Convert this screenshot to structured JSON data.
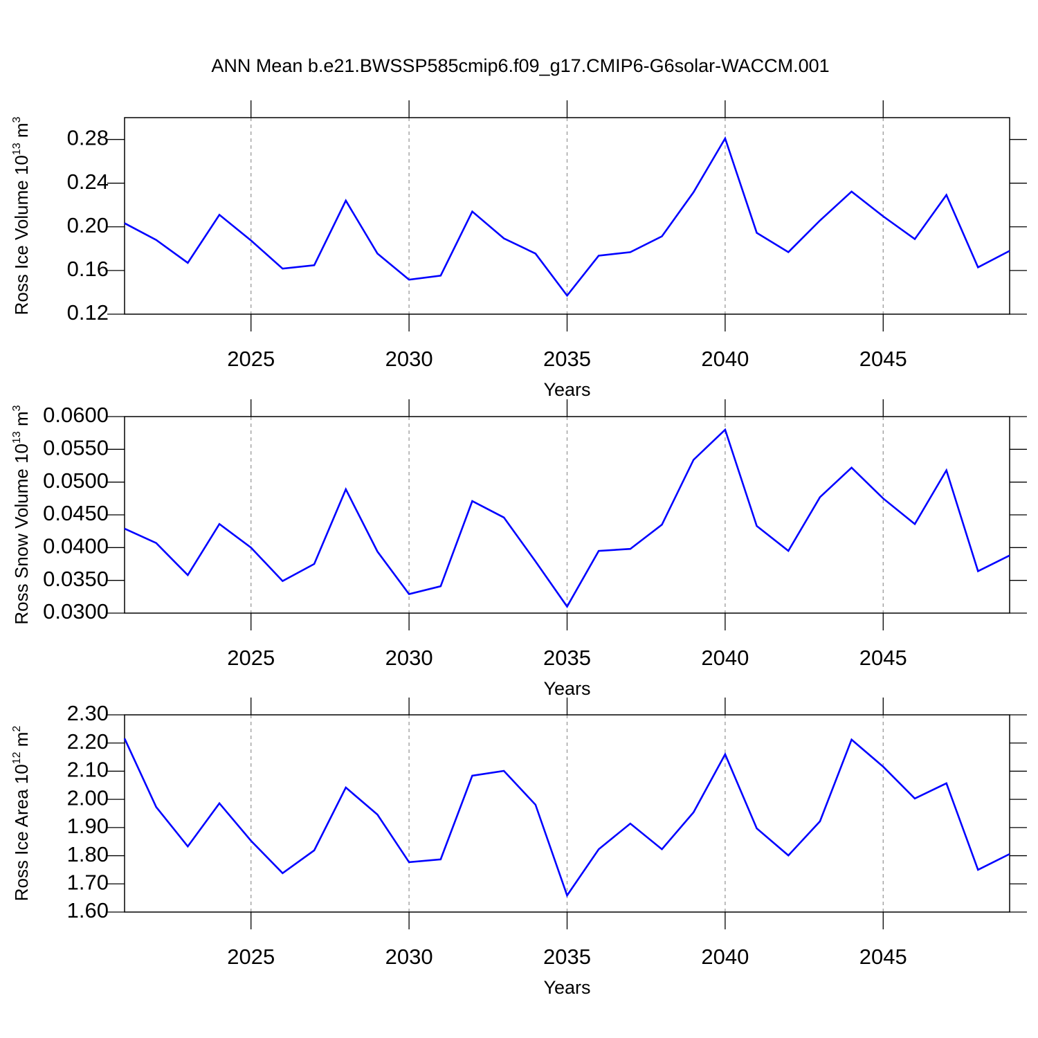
{
  "title": "ANN Mean b.e21.BWSSP585cmip6.f09_g17.CMIP6-G6solar-WACCM.001",
  "chart_data": [
    {
      "type": "line",
      "ylabel": {
        "text": "Ross Ice Volume 10",
        "exp": "13",
        "unit": " m",
        "unit_exp": "3"
      },
      "xlabel": "Years",
      "x": [
        2021,
        2022,
        2023,
        2024,
        2025,
        2026,
        2027,
        2028,
        2029,
        2030,
        2031,
        2032,
        2033,
        2034,
        2035,
        2036,
        2037,
        2038,
        2039,
        2040,
        2041,
        2042,
        2043,
        2044,
        2045,
        2046,
        2047,
        2048,
        2049
      ],
      "series": [
        {
          "color": "#0000ff",
          "values": [
            0.2033,
            0.188,
            0.167,
            0.211,
            0.1875,
            0.1617,
            0.1648,
            0.224,
            0.1755,
            0.1516,
            0.1553,
            0.214,
            0.1894,
            0.1755,
            0.137,
            0.1736,
            0.1768,
            0.1913,
            0.2317,
            0.281,
            0.1945,
            0.1768,
            0.2058,
            0.2323,
            0.2096,
            0.1888,
            0.2292,
            0.1629,
            0.178
          ]
        }
      ],
      "xlim": [
        2021,
        2049
      ],
      "xticks": [
        2025,
        2030,
        2035,
        2040,
        2045
      ],
      "xgrid": true,
      "ylim": [
        0.12,
        0.3
      ],
      "yticks": [
        0.12,
        0.16,
        {
          "value": 0.2,
          "label": "0.20"
        },
        0.24,
        0.28
      ]
    },
    {
      "type": "line",
      "ylabel": {
        "text": "Ross Snow Volume 10",
        "exp": "13",
        "unit": " m",
        "unit_exp": "3"
      },
      "xlabel": "Years",
      "x": [
        2021,
        2022,
        2023,
        2024,
        2025,
        2026,
        2027,
        2028,
        2029,
        2030,
        2031,
        2032,
        2033,
        2034,
        2035,
        2036,
        2037,
        2038,
        2039,
        2040,
        2041,
        2042,
        2043,
        2044,
        2045,
        2046,
        2047,
        2048,
        2049
      ],
      "series": [
        {
          "color": "#0000ff",
          "values": [
            0.0429,
            0.0407,
            0.0358,
            0.0436,
            0.04,
            0.0349,
            0.0375,
            0.0489,
            0.0394,
            0.0329,
            0.0341,
            0.0471,
            0.0446,
            0.0379,
            0.031,
            0.0395,
            0.0398,
            0.0435,
            0.0534,
            0.058,
            0.0433,
            0.0395,
            0.0477,
            0.0522,
            0.0475,
            0.0436,
            0.0518,
            0.0364,
            0.0388
          ]
        }
      ],
      "xlim": [
        2021,
        2049
      ],
      "xticks": [
        2025,
        2030,
        2035,
        2040,
        2045
      ],
      "xgrid": true,
      "ylim": [
        0.03,
        0.06
      ],
      "yticks": [
        {
          "value": 0.03,
          "label": "0.0300"
        },
        {
          "value": 0.035,
          "label": "0.0350"
        },
        {
          "value": 0.04,
          "label": "0.0400"
        },
        {
          "value": 0.045,
          "label": "0.0450"
        },
        {
          "value": 0.05,
          "label": "0.0500"
        },
        {
          "value": 0.055,
          "label": "0.0550"
        },
        {
          "value": 0.06,
          "label": "0.0600"
        }
      ]
    },
    {
      "type": "line",
      "ylabel": {
        "text": "Ross Ice Area 10",
        "exp": "12",
        "unit": " m",
        "unit_exp": "2"
      },
      "xlabel": "Years",
      "x": [
        2021,
        2022,
        2023,
        2024,
        2025,
        2026,
        2027,
        2028,
        2029,
        2030,
        2031,
        2032,
        2033,
        2034,
        2035,
        2036,
        2037,
        2038,
        2039,
        2040,
        2041,
        2042,
        2043,
        2044,
        2045,
        2046,
        2047,
        2048,
        2049
      ],
      "series": [
        {
          "color": "#0000ff",
          "values": [
            2.216,
            1.973,
            1.833,
            1.986,
            1.853,
            1.738,
            1.819,
            2.042,
            1.946,
            1.777,
            1.787,
            2.084,
            2.101,
            1.981,
            1.659,
            1.823,
            1.914,
            1.823,
            1.954,
            2.16,
            1.897,
            1.801,
            1.922,
            2.212,
            2.116,
            2.003,
            2.057,
            1.75,
            1.806
          ]
        }
      ],
      "xlim": [
        2021,
        2049
      ],
      "xticks": [
        2025,
        2030,
        2035,
        2040,
        2045
      ],
      "xgrid": true,
      "ylim": [
        1.6,
        2.3
      ],
      "yticks": [
        {
          "value": 1.6,
          "label": "1.60"
        },
        {
          "value": 1.7,
          "label": "1.70"
        },
        {
          "value": 1.8,
          "label": "1.80"
        },
        {
          "value": 1.9,
          "label": "1.90"
        },
        {
          "value": 2.0,
          "label": "2.00"
        },
        {
          "value": 2.1,
          "label": "2.10"
        },
        {
          "value": 2.2,
          "label": "2.20"
        },
        {
          "value": 2.3,
          "label": "2.30"
        }
      ]
    }
  ]
}
